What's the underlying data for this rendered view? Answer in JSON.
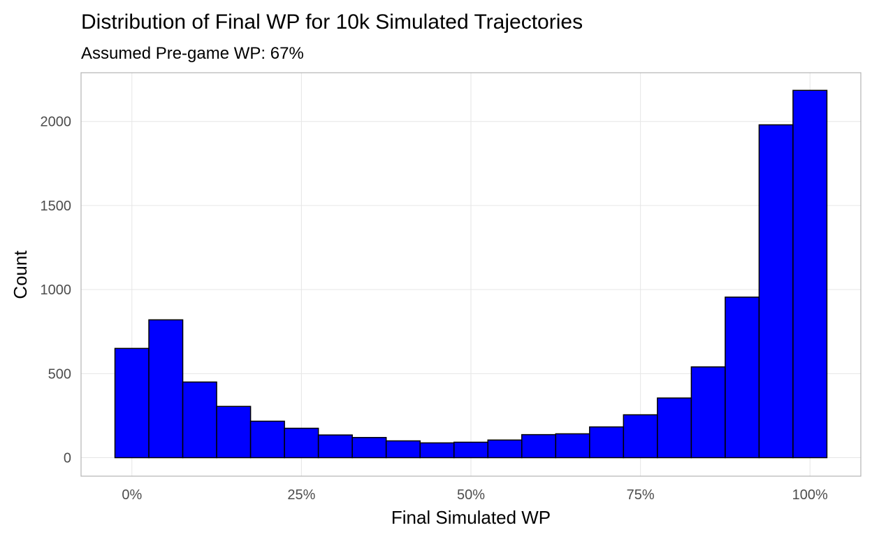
{
  "chart_data": {
    "type": "bar",
    "title": "Distribution of Final WP for 10k Simulated Trajectories",
    "subtitle": "Assumed Pre-game WP: 67%",
    "xlabel": "Final Simulated WP",
    "ylabel": "Count",
    "xlim": [
      -0.075,
      1.075
    ],
    "ylim": [
      -110,
      2290
    ],
    "x_ticks": [
      0,
      0.25,
      0.5,
      0.75,
      1.0
    ],
    "x_tick_labels": [
      "0%",
      "25%",
      "50%",
      "75%",
      "100%"
    ],
    "y_ticks": [
      0,
      500,
      1000,
      1500,
      2000
    ],
    "y_tick_labels": [
      "0",
      "500",
      "1000",
      "1500",
      "2000"
    ],
    "bin_width": 0.05,
    "bin_centers": [
      0.0,
      0.05,
      0.1,
      0.15,
      0.2,
      0.25,
      0.3,
      0.35,
      0.4,
      0.45,
      0.5,
      0.55,
      0.6,
      0.65,
      0.7,
      0.75,
      0.8,
      0.85,
      0.9,
      0.95,
      1.0
    ],
    "values": [
      650,
      820,
      450,
      305,
      217,
      175,
      135,
      120,
      100,
      88,
      92,
      105,
      137,
      142,
      183,
      255,
      355,
      540,
      955,
      1980,
      2185
    ],
    "bar_fill": "#0000ff",
    "bar_outline": "#000000",
    "grid": true,
    "legend": "none"
  }
}
